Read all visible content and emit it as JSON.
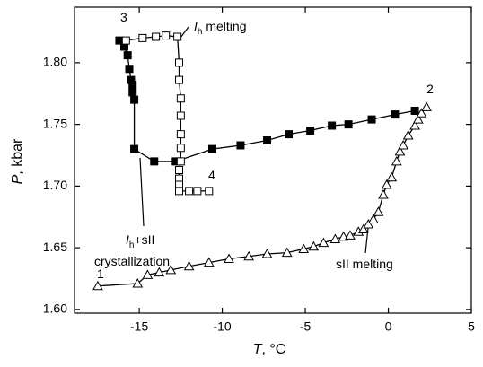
{
  "chart_data": {
    "type": "scatter",
    "x_label": [
      "T",
      ", °C"
    ],
    "y_label": [
      "P",
      ", kbar"
    ],
    "xlim": [
      -18.9,
      5.0
    ],
    "ylim": [
      1.597,
      1.845
    ],
    "xticks": [
      -15,
      -10,
      -5,
      0,
      5
    ],
    "yticks": [
      {
        "value": 1.6,
        "label": "1.60"
      },
      1.65,
      {
        "value": 1.7,
        "label": "1.70"
      },
      1.75,
      {
        "value": 1.8,
        "label": "1.80"
      }
    ],
    "series": [
      {
        "marker": "filled-square",
        "color": "#000000",
        "x": [
          -16.2,
          -15.9,
          -15.7,
          -15.6,
          -15.5,
          -15.4,
          -15.4,
          -15.3,
          -15.3,
          -14.1,
          -12.8,
          -10.6,
          -8.9,
          -7.3,
          -6.0,
          -4.7,
          -3.4,
          -2.4,
          -1.0,
          0.4,
          1.6
        ],
        "y": [
          1.818,
          1.813,
          1.806,
          1.795,
          1.786,
          1.782,
          1.776,
          1.77,
          1.73,
          1.72,
          1.72,
          1.73,
          1.733,
          1.737,
          1.742,
          1.745,
          1.749,
          1.75,
          1.754,
          1.758,
          1.761
        ]
      },
      {
        "marker": "open-square",
        "color": "#000000",
        "x": [
          -15.8,
          -14.8,
          -14.0,
          -13.4,
          -12.7,
          -12.6,
          -12.6,
          -12.5,
          -12.5,
          -12.5,
          -12.5,
          -12.5,
          -12.6,
          -12.6,
          -12.6,
          -12.6,
          -12.0,
          -11.5,
          -10.8
        ],
        "y": [
          1.818,
          1.82,
          1.821,
          1.822,
          1.821,
          1.8,
          1.786,
          1.771,
          1.757,
          1.742,
          1.731,
          1.72,
          1.713,
          1.706,
          1.701,
          1.696,
          1.696,
          1.696,
          1.696
        ]
      },
      {
        "marker": "open-triangle",
        "color": "#000000",
        "x": [
          -17.5,
          -15.1,
          -14.5,
          -13.8,
          -13.1,
          -12.0,
          -10.8,
          -9.6,
          -8.4,
          -7.3,
          -6.1,
          -5.1,
          -4.5,
          -3.9,
          -3.2,
          -2.7,
          -2.3,
          -1.8,
          -1.5,
          -1.2,
          -0.9,
          -0.6,
          -0.3,
          -0.1,
          0.2,
          0.5,
          0.7,
          0.9,
          1.2,
          1.6,
          1.8,
          2.0,
          2.3
        ],
        "y": [
          1.619,
          1.621,
          1.628,
          1.63,
          1.632,
          1.635,
          1.638,
          1.641,
          1.643,
          1.645,
          1.646,
          1.649,
          1.651,
          1.654,
          1.657,
          1.659,
          1.66,
          1.663,
          1.665,
          1.669,
          1.673,
          1.679,
          1.693,
          1.701,
          1.707,
          1.72,
          1.728,
          1.733,
          1.741,
          1.749,
          1.754,
          1.759,
          1.764
        ]
      }
    ],
    "annotations": [
      {
        "parts": [
          "1"
        ]
      },
      {
        "parts": [
          "2"
        ]
      },
      {
        "parts": [
          "3"
        ]
      },
      {
        "parts": [
          "4"
        ]
      },
      {
        "parts": [
          "I",
          "h",
          " melting"
        ]
      },
      {
        "parts": [
          "I",
          "h",
          "+sII"
        ]
      },
      {
        "parts": [
          "crystallization"
        ]
      },
      {
        "parts": [
          "sII melting"
        ]
      }
    ]
  }
}
